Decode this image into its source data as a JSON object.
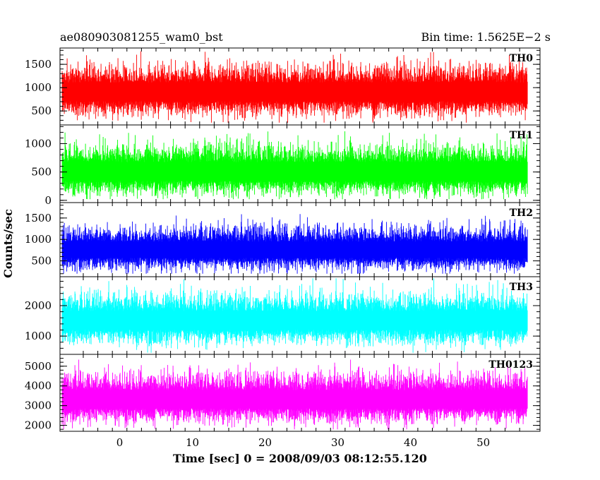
{
  "title_left": "ae080903081255_wam0_bst",
  "title_right": "Bin time: 1.5625E−2 s",
  "xlabel": "Time [sec] 0 = 2008/09/03 08:12:55.120",
  "ylabel": "Counts/sec",
  "chart_data": {
    "type": "line",
    "x_range": [
      -8.2,
      57.8
    ],
    "x_data_range": [
      -7.9,
      56.1
    ],
    "x_ticks": [
      0,
      10,
      20,
      30,
      40,
      50
    ],
    "x_tick_labels": [
      "0",
      "10",
      "20",
      "30",
      "40",
      "50"
    ],
    "series": [
      {
        "name": "TH0",
        "color": "#ff0000",
        "ylim": [
          200,
          1850
        ],
        "baseline": 900,
        "min": 250,
        "max": 1850,
        "y_ticks": [
          500,
          1000,
          1500
        ],
        "y_tick_labels": [
          "500",
          "1000",
          "1500"
        ]
      },
      {
        "name": "TH1",
        "color": "#00ff00",
        "ylim": [
          -40,
          1330
        ],
        "baseline": 500,
        "min": 20,
        "max": 1330,
        "y_ticks": [
          0,
          500,
          1000
        ],
        "y_tick_labels": [
          "0",
          "500",
          "1000"
        ]
      },
      {
        "name": "TH2",
        "color": "#0000ff",
        "ylim": [
          130,
          1860
        ],
        "baseline": 750,
        "min": 200,
        "max": 1700,
        "y_ticks": [
          500,
          1000,
          1500
        ],
        "y_tick_labels": [
          "500",
          "1000",
          "1500"
        ]
      },
      {
        "name": "TH3",
        "color": "#00ffff",
        "ylim": [
          400,
          2950
        ],
        "baseline": 1500,
        "min": 450,
        "max": 2900,
        "y_ticks": [
          1000,
          2000
        ],
        "y_tick_labels": [
          "1000",
          "2000"
        ]
      },
      {
        "name": "TH0123",
        "color": "#ff00ff",
        "ylim": [
          1700,
          5600
        ],
        "baseline": 3300,
        "min": 1800,
        "max": 5500,
        "y_ticks": [
          2000,
          3000,
          4000,
          5000
        ],
        "y_tick_labels": [
          "2000",
          "3000",
          "4000",
          "5000"
        ]
      }
    ]
  }
}
